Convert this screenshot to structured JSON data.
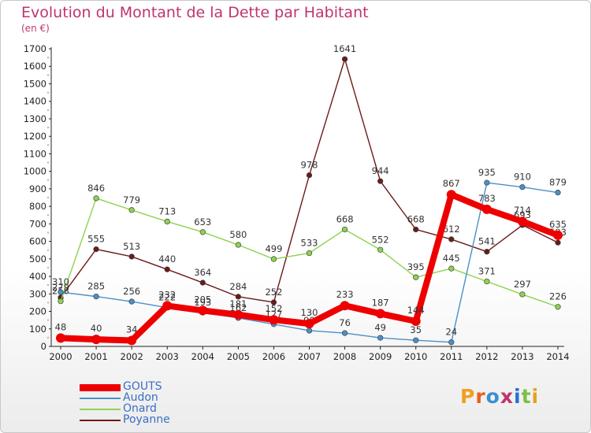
{
  "title": "Evolution du Montant de la Dette par Habitant",
  "subtitle": "(en €)",
  "logo": {
    "text": "Proxiti",
    "colors": [
      "#f0a020",
      "#e8601a",
      "#3a8fd0",
      "#c0336e",
      "#2a6fd0",
      "#7ac043",
      "#e8a020"
    ]
  },
  "chart_data": {
    "type": "line",
    "x": [
      "2000",
      "2001",
      "2002",
      "2003",
      "2004",
      "2005",
      "2006",
      "2007",
      "2008",
      "2009",
      "2010",
      "2011",
      "2012",
      "2013",
      "2014"
    ],
    "ylim": [
      0,
      1700
    ],
    "yticks": [
      0,
      100,
      200,
      300,
      400,
      500,
      600,
      700,
      800,
      900,
      1000,
      1100,
      1200,
      1300,
      1400,
      1500,
      1600,
      1700
    ],
    "grid": false,
    "legend_position": "bottom-left",
    "series": [
      {
        "name": "Poyanne",
        "color": "#6b1a1a",
        "values": [
          279,
          555,
          513,
          440,
          364,
          284,
          252,
          978,
          1641,
          944,
          668,
          612,
          541,
          693,
          593
        ],
        "labels": [
          "279",
          "555",
          "513",
          "440",
          "364",
          "284",
          "252",
          "978",
          "1641",
          "944",
          "668",
          "612",
          "541",
          "693",
          "593"
        ]
      },
      {
        "name": "Onard",
        "color": "#8ed34f",
        "values": [
          258,
          846,
          779,
          713,
          653,
          580,
          499,
          533,
          668,
          552,
          395,
          445,
          371,
          297,
          226
        ],
        "labels": [
          "258",
          "846",
          "779",
          "713",
          "653",
          "580",
          "499",
          "533",
          "668",
          "552",
          "395",
          "445",
          "371",
          "297",
          "226"
        ]
      },
      {
        "name": "Audon",
        "color": "#4a90c8",
        "values": [
          310,
          285,
          256,
          222,
          193,
          162,
          127,
          90,
          76,
          49,
          35,
          24,
          935,
          910,
          879
        ],
        "labels": [
          "310",
          "285",
          "256",
          "222",
          "193",
          "162",
          "127",
          "90",
          "76",
          "49",
          "35",
          "24",
          "935",
          "910",
          "879"
        ]
      },
      {
        "name": "GOUTS",
        "color": "#ee0000",
        "values": [
          48,
          40,
          34,
          232,
          205,
          181,
          152,
          130,
          233,
          187,
          144,
          867,
          783,
          714,
          635
        ],
        "labels": [
          "48",
          "40",
          "34",
          "232",
          "205",
          "181",
          "152",
          "130",
          "233",
          "187",
          "144",
          "867",
          "783",
          "714",
          "635"
        ]
      }
    ]
  }
}
